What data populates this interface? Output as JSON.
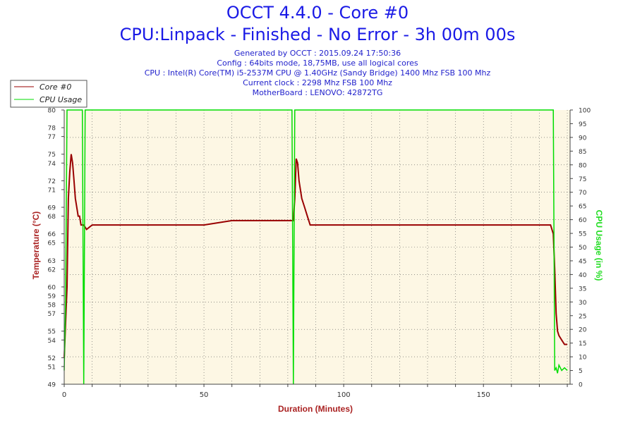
{
  "header": {
    "title": "OCCT 4.4.0 - Core #0",
    "subtitle": "CPU:Linpack - Finished - No Error - 3h 00m 00s",
    "info_lines": [
      "Generated by OCCT : 2015.09.24 17:50:36",
      "Config : 64bits mode, 18,75MB, use all logical cores",
      "CPU : Intel(R) Core(TM) i5-2537M CPU @ 1.40GHz (Sandy Bridge) 1400 Mhz FSB 100 Mhz",
      "Current clock : 2298 Mhz FSB 100 Mhz",
      "MotherBoard : LENOVO: 42872TG"
    ]
  },
  "colors": {
    "temperature": "#990000",
    "cpu_usage": "#00dd00",
    "plot_bg": "#fdf7e4",
    "axis_left": "#aa2222",
    "axis_right": "#33dd33"
  },
  "chart_data": {
    "type": "line",
    "xlabel": "Duration (Minutes)",
    "ylabel_left": "Temperature (°C)",
    "ylabel_right": "CPU Usage (in %)",
    "xlim": [
      0,
      181
    ],
    "ylim_left": [
      49,
      80
    ],
    "ylim_right": [
      0,
      100
    ],
    "x_ticks": [
      0,
      50,
      100,
      150
    ],
    "y_left_ticks": [
      49,
      51,
      52,
      54,
      55,
      57,
      58,
      59,
      60,
      62,
      63,
      65,
      66,
      68,
      69,
      71,
      72,
      74,
      75,
      77,
      78,
      80
    ],
    "y_right_ticks": [
      0,
      5,
      10,
      15,
      20,
      25,
      30,
      35,
      40,
      45,
      50,
      55,
      60,
      65,
      70,
      75,
      80,
      85,
      90,
      95,
      100
    ],
    "grid": "dotted",
    "legend": [
      "Core #0",
      "CPU Usage"
    ],
    "series": [
      {
        "name": "Core #0",
        "axis": "left",
        "x": [
          0,
          1,
          1.5,
          2,
          2.5,
          3,
          3.5,
          4,
          4.5,
          5,
          5.5,
          6,
          6.5,
          7,
          8,
          10,
          20,
          30,
          40,
          50,
          60,
          70,
          80,
          81,
          82,
          82.5,
          83,
          83.5,
          84,
          85,
          86,
          87,
          88,
          90,
          100,
          110,
          120,
          130,
          140,
          150,
          160,
          170,
          174,
          175,
          175.5,
          176,
          176.5,
          177,
          178,
          179,
          180
        ],
        "values": [
          52,
          60,
          70,
          73,
          75,
          74,
          72,
          70,
          69,
          68,
          68,
          67,
          67,
          67,
          66.5,
          67,
          67,
          67,
          67,
          67,
          67.5,
          67.5,
          67.5,
          67.5,
          67.5,
          70,
          74.5,
          74,
          72,
          70,
          69,
          68,
          67,
          67,
          67,
          67,
          67,
          67,
          67,
          67,
          67,
          67,
          67,
          66,
          62,
          57,
          55,
          54.5,
          54,
          53.5,
          53.5
        ]
      },
      {
        "name": "CPU Usage",
        "axis": "right",
        "x": [
          0,
          0.5,
          1,
          1.5,
          6.5,
          7,
          7.5,
          81.5,
          82,
          82.5,
          175,
          175.5,
          176,
          176.5,
          177,
          178,
          179,
          180
        ],
        "values": [
          5,
          30,
          100,
          100,
          100,
          0,
          100,
          100,
          0,
          100,
          100,
          5,
          6,
          4,
          7,
          5,
          6,
          5
        ]
      }
    ]
  }
}
